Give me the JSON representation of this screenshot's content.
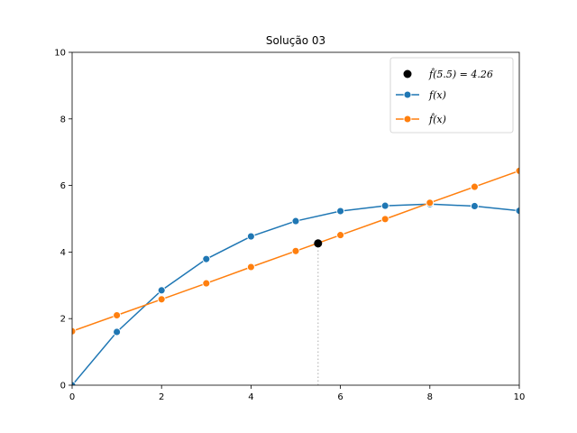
{
  "chart_data": {
    "type": "line",
    "title": "Solução 03",
    "xlabel": "",
    "ylabel": "",
    "xlim": [
      0,
      10
    ],
    "ylim": [
      0,
      10
    ],
    "x_ticks": [
      0,
      2,
      4,
      6,
      8,
      10
    ],
    "y_ticks": [
      0,
      2,
      4,
      6,
      8,
      10
    ],
    "grid": false,
    "legend_position": "top-right",
    "series": [
      {
        "name": "f(x)",
        "color": "#1f77b4",
        "marker": "circle",
        "x": [
          0,
          1,
          2,
          3,
          4,
          5,
          6,
          7,
          8,
          9,
          10
        ],
        "y": [
          0.0,
          1.6,
          2.85,
          3.79,
          4.47,
          4.93,
          5.23,
          5.39,
          5.44,
          5.38,
          5.24
        ]
      },
      {
        "name": "f̂(x)",
        "color": "#ff7f0e",
        "marker": "circle",
        "x": [
          0,
          1,
          2,
          3,
          4,
          5,
          6,
          7,
          8,
          9,
          10
        ],
        "y": [
          1.62,
          2.1,
          2.58,
          3.06,
          3.55,
          4.03,
          4.51,
          4.99,
          5.48,
          5.96,
          6.44
        ]
      }
    ],
    "highlight_point": {
      "label": "f̂(5.5) = 4.26",
      "x": 5.5,
      "y": 4.26,
      "color": "#000000",
      "guide_line": "dotted-vertical"
    }
  }
}
